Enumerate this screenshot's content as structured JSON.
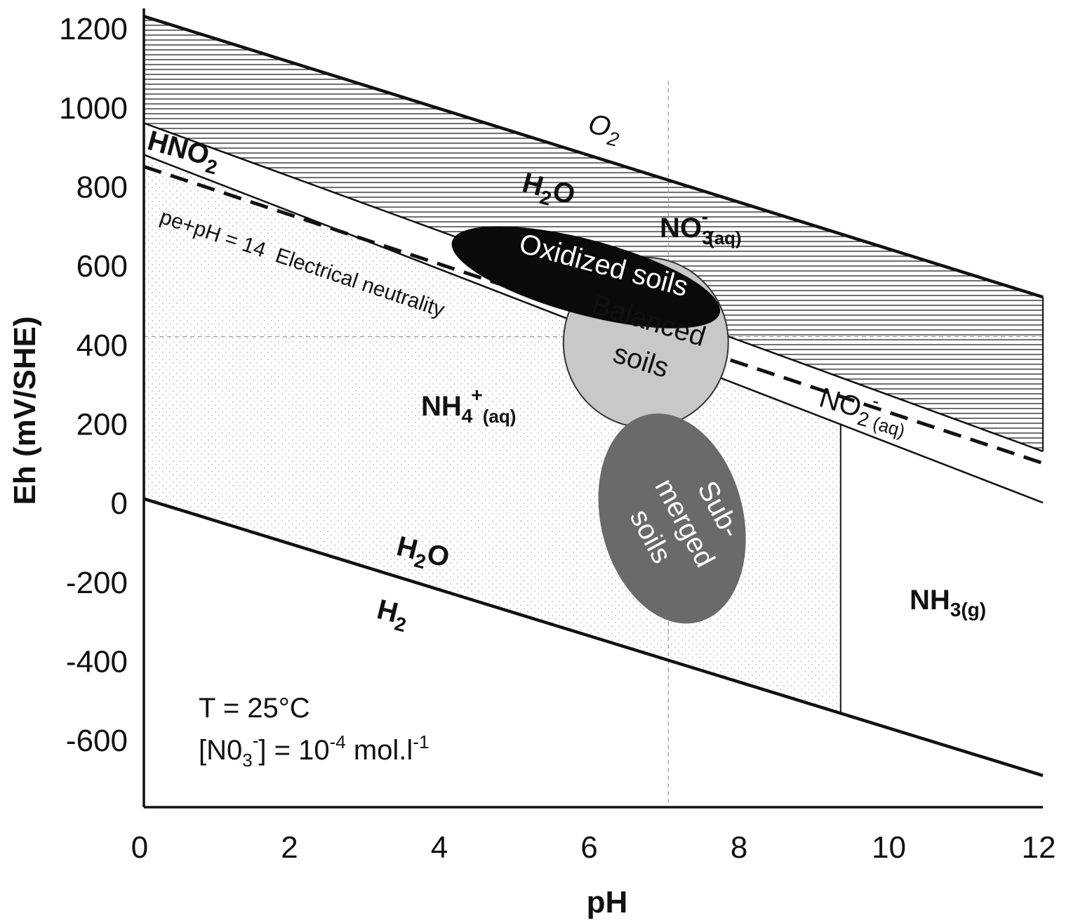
{
  "chart_data": {
    "type": "line",
    "xlabel": "pH",
    "ylabel": "Eh (mV/SHE)",
    "xlim": [
      0,
      12
    ],
    "ylim": [
      -770,
      1250
    ],
    "x_ticks": [
      "0",
      "2",
      "4",
      "6",
      "8",
      "10",
      "12"
    ],
    "y_ticks": [
      "1200",
      "1000",
      "800",
      "600",
      "400",
      "200",
      "0",
      "-200",
      "-400",
      "-600"
    ],
    "colors": {
      "line": "#111111",
      "oxidized_soils": "#0a0a0a",
      "balanced_soils": "#c8c8c8",
      "submerged_soils": "#6a6a6a",
      "grid_dashed": "#9a9a9a"
    },
    "series": [
      {
        "name": "",
        "x": [
          0,
          12
        ],
        "y": [
          1230,
          520
        ]
      },
      {
        "name": "",
        "x": [
          0,
          12
        ],
        "y": [
          10,
          -690
        ]
      },
      {
        "name": "",
        "x": [
          0,
          12
        ],
        "y": [
          960,
          130
        ]
      },
      {
        "name": "",
        "x": [
          0,
          12
        ],
        "y": [
          880,
          0
        ]
      },
      {
        "name": "pe+pH = 14  Electrical neutrality",
        "x": [
          0,
          12
        ],
        "y": [
          850,
          100
        ]
      },
      {
        "name": "",
        "x": [
          9.3,
          9.3
        ],
        "y": [
          200,
          -530
        ]
      }
    ],
    "reference_lines": {
      "x": 7,
      "y": 420
    },
    "regions": [
      {
        "label": "Oxidized soils",
        "x": 5.9,
        "y": 570,
        "rx": 1.85,
        "ry": 95
      },
      {
        "label": "Balanced soils",
        "label_lines": [
          "Balanced",
          "soils"
        ],
        "x": 6.7,
        "y": 405,
        "rx": 1.1,
        "ry": 215
      },
      {
        "label": "Sub-merged soils",
        "label_lines": [
          "Sub-",
          "merged",
          "soils"
        ],
        "x": 7.05,
        "y": -40,
        "rx": 0.95,
        "ry": 270
      }
    ],
    "species_labels": {
      "o2": {
        "text": "O",
        "sub": "2"
      },
      "h2o_top": {
        "text": "H",
        "sub": "2",
        "rest": "O"
      },
      "hno2": {
        "text": "HNO",
        "sub": "2"
      },
      "no3": {
        "text": "NO",
        "sub": "3",
        "sup": "-",
        "aq": "(aq)"
      },
      "no2": {
        "text": "NO",
        "sub": "2",
        "sup": "-",
        "aq": "(aq)"
      },
      "nh4": {
        "text": "NH",
        "sub": "4",
        "sup": "+",
        "aq": "(aq)"
      },
      "h2o_bottom": {
        "text": "H",
        "sub": "2",
        "rest": "O"
      },
      "h2": {
        "text": "H",
        "sub": "2"
      },
      "nh3": {
        "text": "NH",
        "sub": "3(g)"
      }
    },
    "neutrality_label": "pe+pH = 14  Electrical neutrality",
    "conditions": {
      "temperature": "T = 25°C",
      "nitrate": {
        "pre": "[N0",
        "sub": "3",
        "sup": "-",
        "mid": "] = 10",
        "exp": "-4",
        "unit": " mol.l",
        "unit_exp": "-1"
      }
    }
  }
}
